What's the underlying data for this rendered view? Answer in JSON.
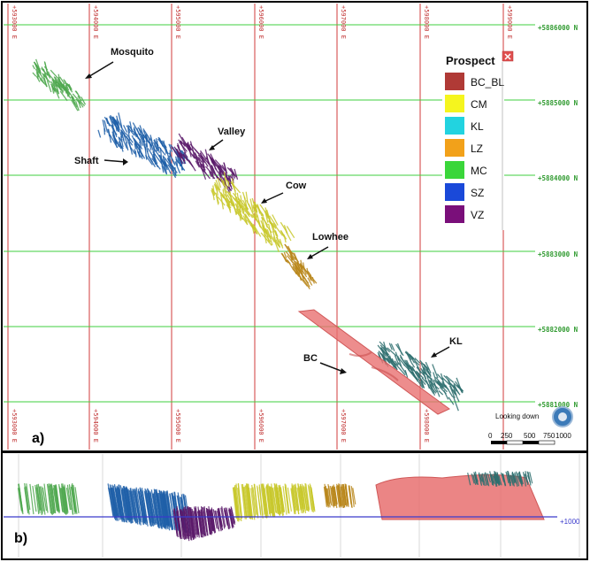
{
  "panel_a": {
    "label": "a)",
    "easting_ticks_top": [
      "+594000 E",
      "+595000 E",
      "+596000 E",
      "+597000 E",
      "+598000 E",
      "+599000 E"
    ],
    "easting_tick_left_top": "+593000 E",
    "easting_ticks_bottom": [
      "+593000 E",
      "+594000 E",
      "+595000 E",
      "+596000 E",
      "+597000 E",
      "+598000 E"
    ],
    "northing_ticks": [
      "+5886000 N",
      "+5885000 N",
      "+5884000 N",
      "+5883000 N",
      "+5882000 N",
      "+5881000 N"
    ],
    "prospect_labels": {
      "mosquito": "Mosquito",
      "valley": "Valley",
      "shaft": "Shaft",
      "cow": "Cow",
      "lowhee": "Lowhee",
      "bc": "BC",
      "kl": "KL"
    },
    "legend": {
      "title": "Prospect",
      "items": [
        {
          "label": "BC_BL",
          "color": "#b03a36"
        },
        {
          "label": "CM",
          "color": "#f5f51e"
        },
        {
          "label": "KL",
          "color": "#22d3e0"
        },
        {
          "label": "LZ",
          "color": "#f2a11a"
        },
        {
          "label": "MC",
          "color": "#3ad63a"
        },
        {
          "label": "SZ",
          "color": "#1a49d9"
        },
        {
          "label": "VZ",
          "color": "#7a0f7a"
        }
      ]
    },
    "view_label": "Looking down",
    "scale_ticks": [
      "0",
      "250",
      "500",
      "750",
      "1000"
    ]
  },
  "panel_b": {
    "label": "b)",
    "elevation_label": "+1000"
  },
  "colors": {
    "grid_e": "#d23b3b",
    "grid_n": "#3fcf3f",
    "mc": "#4fa84f",
    "sz": "#1f5fa8",
    "vz": "#5a1a6a",
    "cm": "#c8c82a",
    "lz": "#b8861a",
    "kl": "#2e6e6e",
    "bc_bl": "#e87070"
  }
}
